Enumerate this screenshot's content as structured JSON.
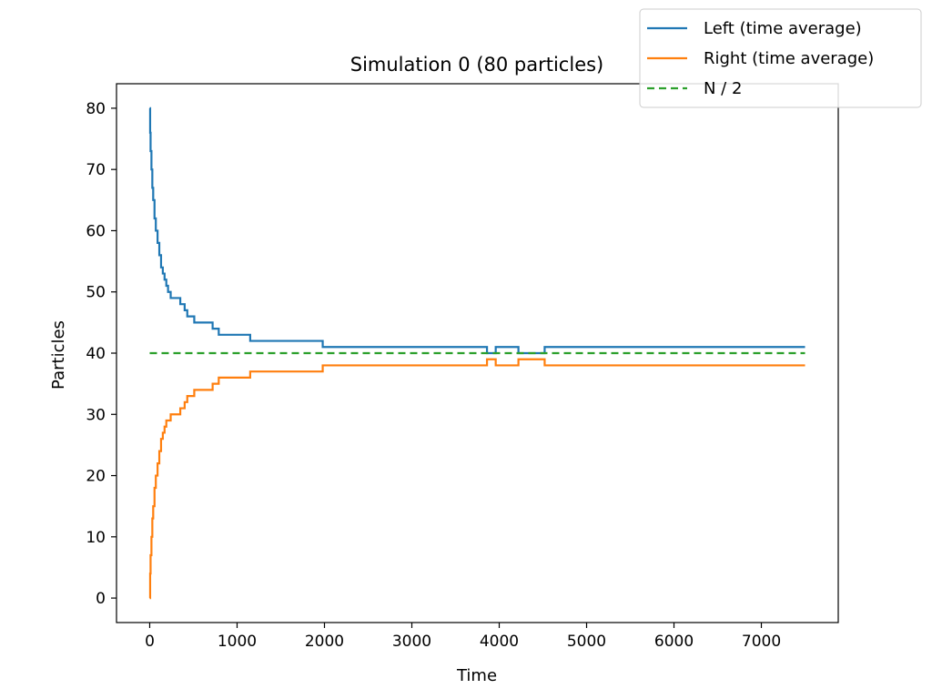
{
  "chart_data": {
    "type": "line",
    "title": "Simulation 0 (80 particles)",
    "xlabel": "Time",
    "ylabel": "Particles",
    "xlim": [
      -380,
      7880
    ],
    "ylim": [
      -4,
      84
    ],
    "xticks": [
      0,
      1000,
      2000,
      3000,
      4000,
      5000,
      6000,
      7000
    ],
    "yticks": [
      0,
      10,
      20,
      30,
      40,
      50,
      60,
      70,
      80
    ],
    "grid": false,
    "legend_placement": "top-right",
    "series": [
      {
        "name": "Left (time average)",
        "color": "#1f77b4",
        "style": "solid",
        "step": true,
        "points": [
          [
            0,
            80
          ],
          [
            5,
            76
          ],
          [
            10,
            73
          ],
          [
            20,
            70
          ],
          [
            30,
            67
          ],
          [
            40,
            65
          ],
          [
            55,
            62
          ],
          [
            70,
            60
          ],
          [
            90,
            58
          ],
          [
            110,
            56
          ],
          [
            130,
            54
          ],
          [
            150,
            53
          ],
          [
            170,
            52
          ],
          [
            190,
            51
          ],
          [
            210,
            50
          ],
          [
            240,
            49
          ],
          [
            350,
            48
          ],
          [
            400,
            47
          ],
          [
            430,
            46
          ],
          [
            510,
            45
          ],
          [
            720,
            44
          ],
          [
            790,
            43
          ],
          [
            1150,
            42
          ],
          [
            1980,
            41
          ],
          [
            3860,
            40
          ],
          [
            3960,
            41
          ],
          [
            4220,
            40
          ],
          [
            4520,
            41
          ],
          [
            7500,
            41
          ]
        ]
      },
      {
        "name": "Right (time average)",
        "color": "#ff7f0e",
        "style": "solid",
        "step": true,
        "points": [
          [
            0,
            0
          ],
          [
            5,
            4
          ],
          [
            10,
            7
          ],
          [
            20,
            10
          ],
          [
            30,
            13
          ],
          [
            40,
            15
          ],
          [
            55,
            18
          ],
          [
            70,
            20
          ],
          [
            90,
            22
          ],
          [
            110,
            24
          ],
          [
            130,
            26
          ],
          [
            150,
            27
          ],
          [
            170,
            28
          ],
          [
            190,
            29
          ],
          [
            240,
            30
          ],
          [
            350,
            31
          ],
          [
            400,
            32
          ],
          [
            430,
            33
          ],
          [
            510,
            34
          ],
          [
            720,
            35
          ],
          [
            790,
            36
          ],
          [
            1150,
            37
          ],
          [
            1980,
            38
          ],
          [
            3860,
            39
          ],
          [
            3960,
            38
          ],
          [
            4220,
            39
          ],
          [
            4520,
            38
          ],
          [
            7500,
            38
          ]
        ]
      },
      {
        "name": "N / 2",
        "color": "#2ca02c",
        "style": "dashed",
        "step": false,
        "points": [
          [
            0,
            40
          ],
          [
            7500,
            40
          ]
        ]
      }
    ]
  }
}
